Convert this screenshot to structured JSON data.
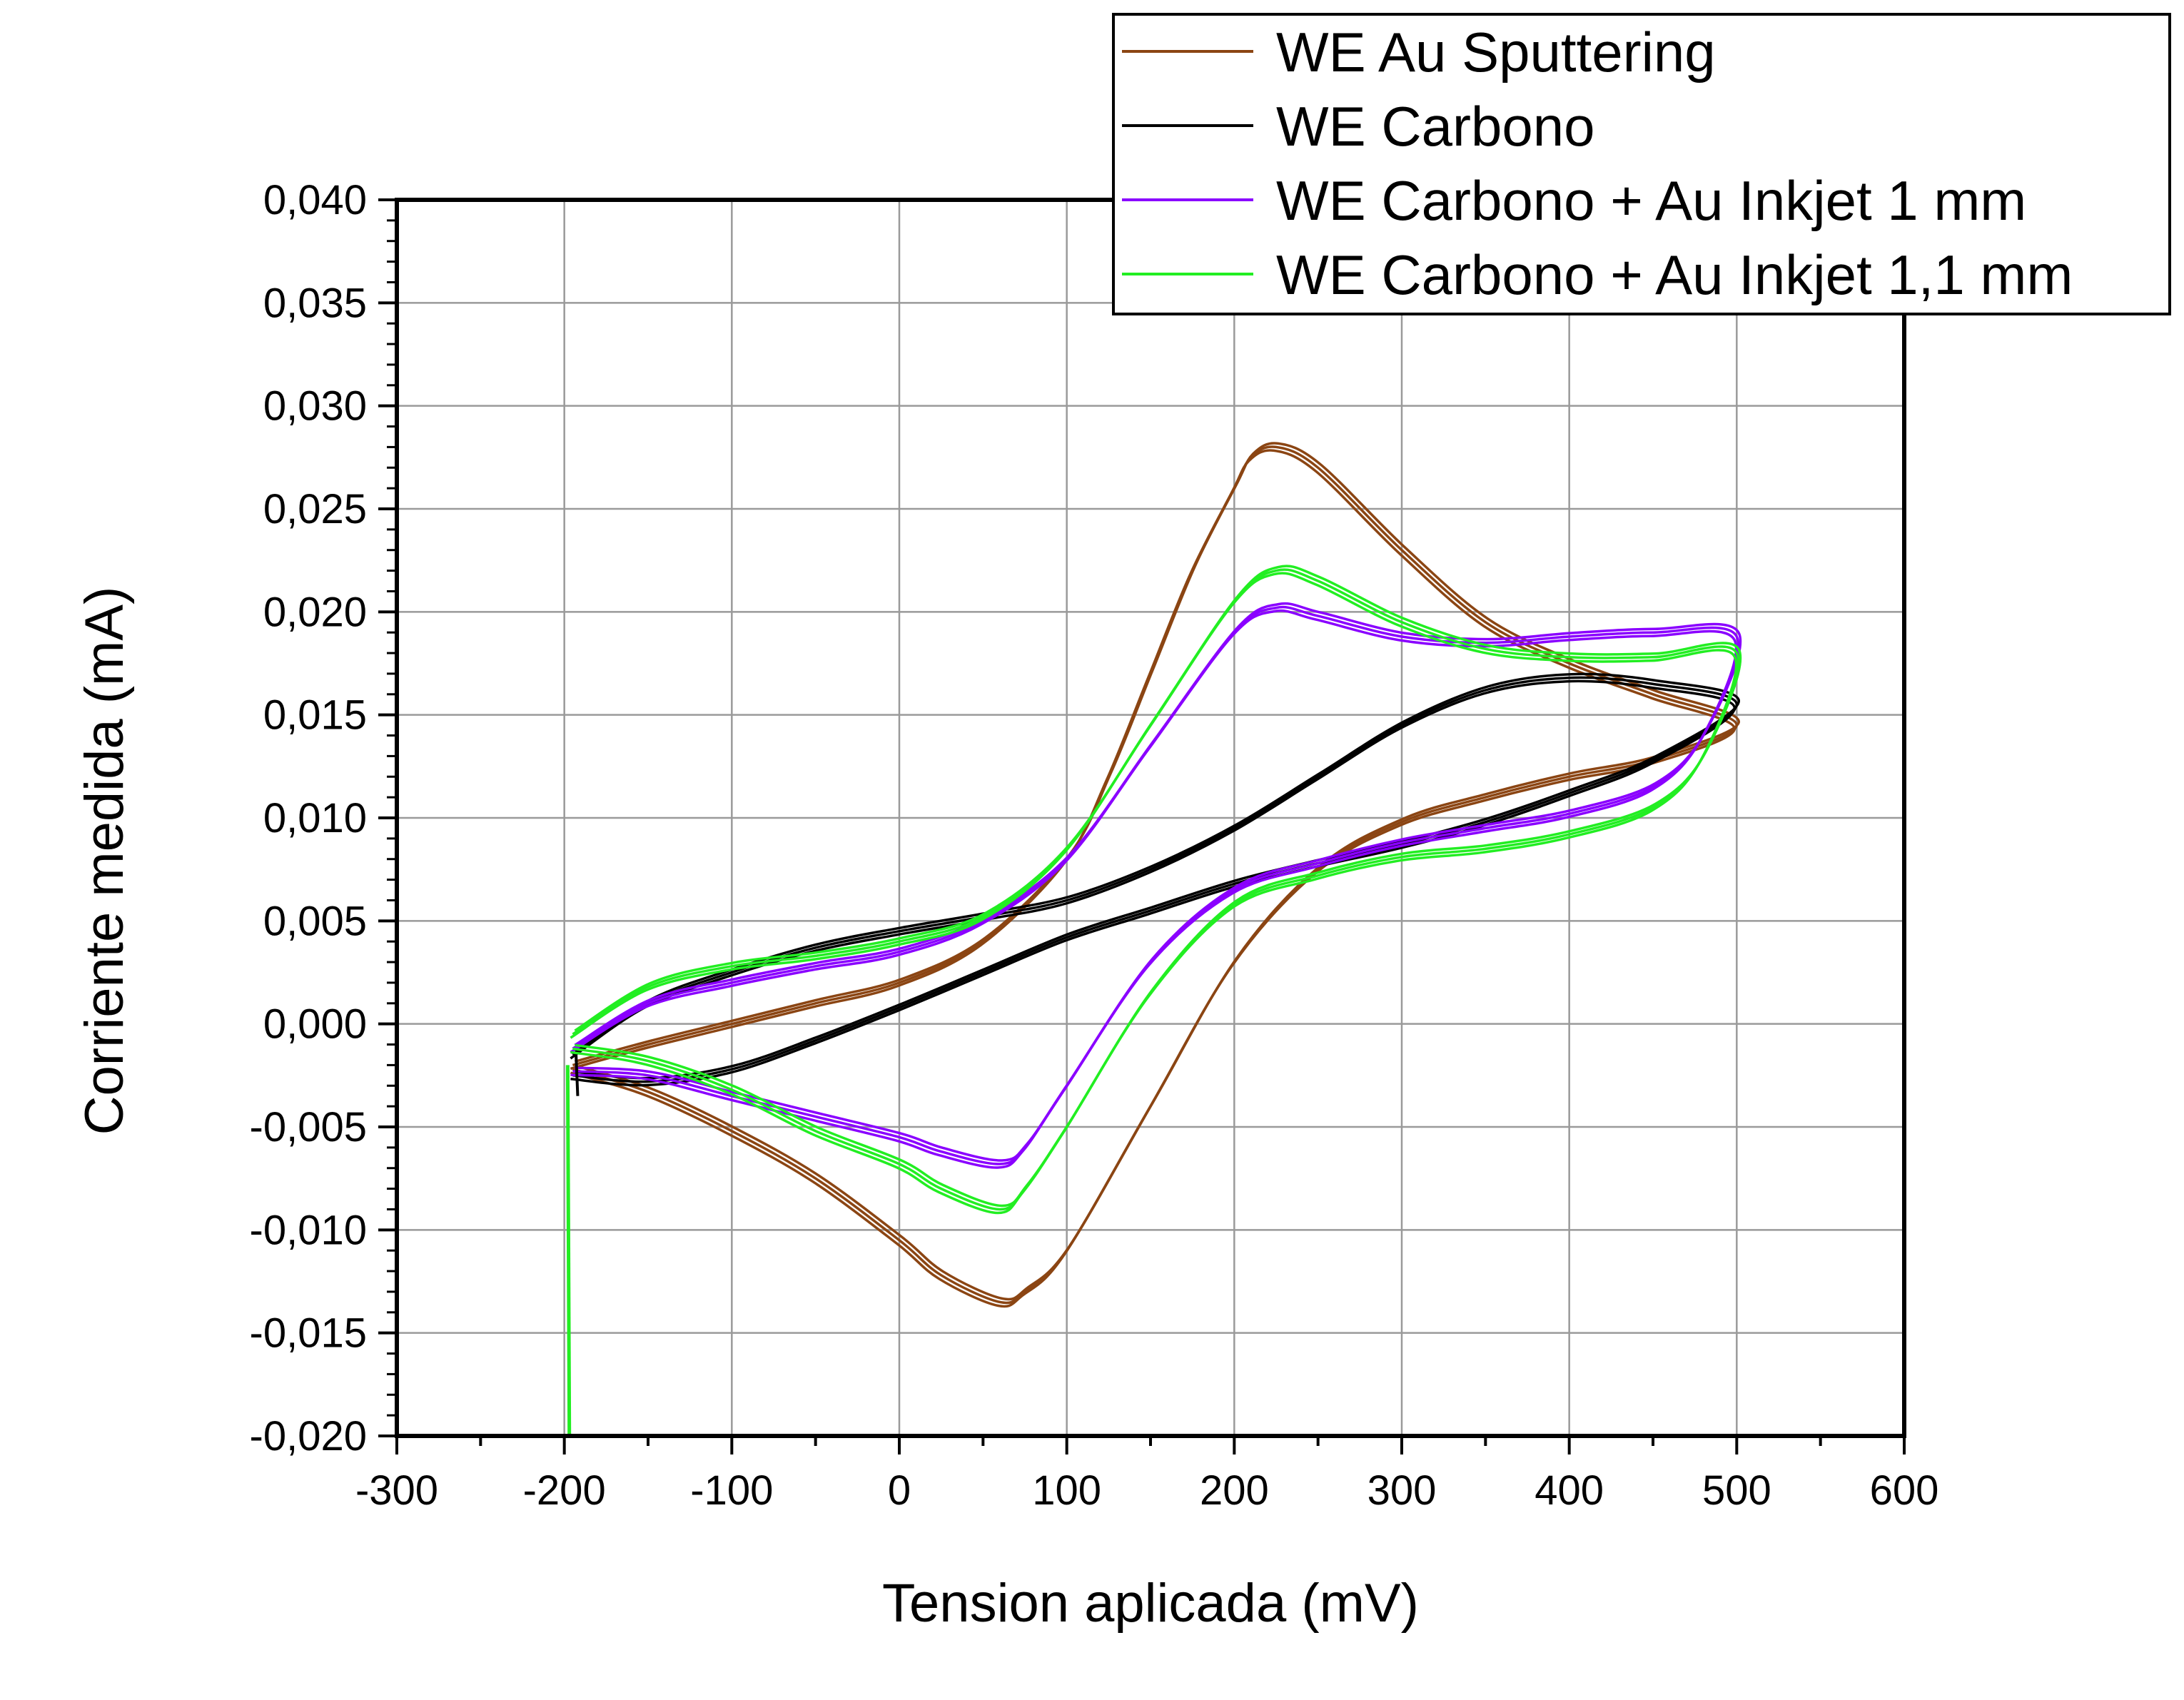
{
  "chart_data": {
    "type": "line",
    "title": "",
    "xlabel": "Tension aplicada (mV)",
    "ylabel": "Corriente medida (mA)",
    "xlim": [
      -300,
      600
    ],
    "ylim": [
      -0.02,
      0.04
    ],
    "x_ticks": [
      "-300",
      "-200",
      "-100",
      "0",
      "100",
      "200",
      "300",
      "400",
      "500",
      "600"
    ],
    "y_ticks": [
      "-0,020",
      "-0,015",
      "-0,010",
      "-0,005",
      "0,000",
      "0,005",
      "0,010",
      "0,015",
      "0,020",
      "0,025",
      "0,030",
      "0,035",
      "0,040"
    ],
    "grid": true,
    "legend_position": "top-right",
    "series": [
      {
        "name": "WE Au Sputtering",
        "color": "#8b4513",
        "forward": [
          [
            -195,
            -0.002
          ],
          [
            -150,
            -0.001
          ],
          [
            -100,
            0.0
          ],
          [
            -50,
            0.001
          ],
          [
            0,
            0.002
          ],
          [
            50,
            0.004
          ],
          [
            100,
            0.008
          ],
          [
            125,
            0.012
          ],
          [
            150,
            0.017
          ],
          [
            175,
            0.022
          ],
          [
            200,
            0.026
          ],
          [
            210,
            0.0275
          ],
          [
            225,
            0.028
          ],
          [
            250,
            0.027
          ],
          [
            300,
            0.023
          ],
          [
            350,
            0.0195
          ],
          [
            400,
            0.0175
          ],
          [
            450,
            0.016
          ],
          [
            500,
            0.0145
          ]
        ],
        "reverse": [
          [
            500,
            0.014
          ],
          [
            450,
            0.0128
          ],
          [
            400,
            0.012
          ],
          [
            350,
            0.011
          ],
          [
            300,
            0.0098
          ],
          [
            250,
            0.0075
          ],
          [
            200,
            0.003
          ],
          [
            150,
            -0.004
          ],
          [
            100,
            -0.011
          ],
          [
            75,
            -0.013
          ],
          [
            60,
            -0.0135
          ],
          [
            25,
            -0.0122
          ],
          [
            0,
            -0.0105
          ],
          [
            -50,
            -0.0075
          ],
          [
            -100,
            -0.0052
          ],
          [
            -150,
            -0.0033
          ],
          [
            -195,
            -0.0022
          ]
        ]
      },
      {
        "name": "WE Carbono",
        "color": "#000000",
        "forward": [
          [
            -195,
            -0.0015
          ],
          [
            -150,
            0.001
          ],
          [
            -100,
            0.0025
          ],
          [
            -50,
            0.0037
          ],
          [
            0,
            0.0045
          ],
          [
            50,
            0.0052
          ],
          [
            100,
            0.006
          ],
          [
            150,
            0.0075
          ],
          [
            200,
            0.0095
          ],
          [
            250,
            0.012
          ],
          [
            300,
            0.0145
          ],
          [
            350,
            0.0162
          ],
          [
            400,
            0.0168
          ],
          [
            450,
            0.0165
          ],
          [
            500,
            0.0155
          ]
        ],
        "reverse": [
          [
            500,
            0.0148
          ],
          [
            450,
            0.0128
          ],
          [
            400,
            0.0112
          ],
          [
            350,
            0.0098
          ],
          [
            300,
            0.0087
          ],
          [
            250,
            0.0078
          ],
          [
            200,
            0.0068
          ],
          [
            150,
            0.0055
          ],
          [
            100,
            0.0042
          ],
          [
            50,
            0.0025
          ],
          [
            0,
            0.0008
          ],
          [
            -50,
            -0.0008
          ],
          [
            -100,
            -0.0022
          ],
          [
            -150,
            -0.0028
          ],
          [
            -195,
            -0.0025
          ]
        ]
      },
      {
        "name": "WE Carbono + Au Inkjet 1 mm",
        "color": "#8a00ff",
        "forward": [
          [
            -195,
            -0.0012
          ],
          [
            -150,
            0.001
          ],
          [
            -100,
            0.002
          ],
          [
            -50,
            0.0028
          ],
          [
            0,
            0.0035
          ],
          [
            50,
            0.005
          ],
          [
            100,
            0.008
          ],
          [
            150,
            0.0135
          ],
          [
            200,
            0.019
          ],
          [
            225,
            0.0202
          ],
          [
            250,
            0.0198
          ],
          [
            300,
            0.0188
          ],
          [
            350,
            0.0185
          ],
          [
            400,
            0.0188
          ],
          [
            450,
            0.019
          ],
          [
            500,
            0.0188
          ]
        ],
        "reverse": [
          [
            500,
            0.017
          ],
          [
            480,
            0.014
          ],
          [
            450,
            0.0115
          ],
          [
            400,
            0.0102
          ],
          [
            350,
            0.0095
          ],
          [
            300,
            0.0088
          ],
          [
            250,
            0.0078
          ],
          [
            200,
            0.0065
          ],
          [
            150,
            0.003
          ],
          [
            100,
            -0.003
          ],
          [
            75,
            -0.006
          ],
          [
            60,
            -0.0068
          ],
          [
            25,
            -0.0062
          ],
          [
            0,
            -0.0055
          ],
          [
            -50,
            -0.0045
          ],
          [
            -100,
            -0.0035
          ],
          [
            -150,
            -0.0025
          ],
          [
            -195,
            -0.0023
          ]
        ]
      },
      {
        "name": "WE Carbono + Au Inkjet 1,1 mm",
        "color": "#22ee22",
        "forward": [
          [
            -195,
            -0.0005
          ],
          [
            -150,
            0.0018
          ],
          [
            -100,
            0.0028
          ],
          [
            -50,
            0.0033
          ],
          [
            0,
            0.004
          ],
          [
            50,
            0.0052
          ],
          [
            100,
            0.0085
          ],
          [
            150,
            0.0145
          ],
          [
            200,
            0.0205
          ],
          [
            225,
            0.022
          ],
          [
            250,
            0.0215
          ],
          [
            300,
            0.0195
          ],
          [
            350,
            0.0182
          ],
          [
            400,
            0.0178
          ],
          [
            450,
            0.0178
          ],
          [
            500,
            0.018
          ]
        ],
        "reverse": [
          [
            500,
            0.0178
          ],
          [
            480,
            0.013
          ],
          [
            450,
            0.0105
          ],
          [
            400,
            0.0092
          ],
          [
            350,
            0.0085
          ],
          [
            300,
            0.0081
          ],
          [
            250,
            0.0072
          ],
          [
            200,
            0.0058
          ],
          [
            150,
            0.0015
          ],
          [
            100,
            -0.005
          ],
          [
            75,
            -0.008
          ],
          [
            60,
            -0.009
          ],
          [
            25,
            -0.008
          ],
          [
            0,
            -0.0068
          ],
          [
            -50,
            -0.0052
          ],
          [
            -100,
            -0.0032
          ],
          [
            -150,
            -0.0018
          ],
          [
            -195,
            -0.0012
          ]
        ]
      }
    ]
  }
}
